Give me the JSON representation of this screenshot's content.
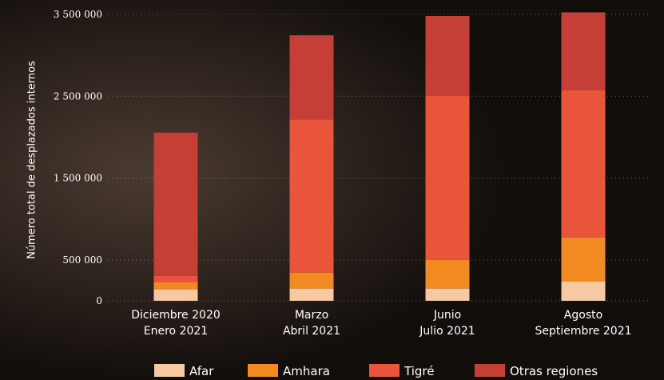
{
  "chart_data": {
    "type": "stacked-bar",
    "y_label": "Número total de desplazados internos",
    "categories": [
      [
        "Diciembre 2020",
        "Enero 2021"
      ],
      [
        "Marzo",
        "Abril 2021"
      ],
      [
        "Junio",
        "Julio 2021"
      ],
      [
        "Agosto",
        "Septiembre 2021"
      ]
    ],
    "series": [
      {
        "name": "Afar",
        "color": "#f6c9a2",
        "values": [
          140000,
          150000,
          150000,
          235000
        ]
      },
      {
        "name": "Amhara",
        "color": "#f28a22",
        "values": [
          85000,
          195000,
          350000,
          540000
        ]
      },
      {
        "name": "Tigré",
        "color": "#e8553a",
        "values": [
          80000,
          1870000,
          2010000,
          1800000
        ]
      },
      {
        "name": "Otras regiones",
        "color": "#c63f36",
        "values": [
          1750000,
          1030000,
          970000,
          950000
        ]
      }
    ],
    "ylim": [
      0,
      3500000
    ],
    "yticks": [
      0,
      {
        "value": 500000,
        "label": "500 000"
      },
      {
        "value": 1500000,
        "label": "1 500 000"
      },
      {
        "value": 2500000,
        "label": "2 500 000"
      },
      {
        "value": 3500000,
        "label": "3 500 000"
      }
    ],
    "grid": true
  }
}
